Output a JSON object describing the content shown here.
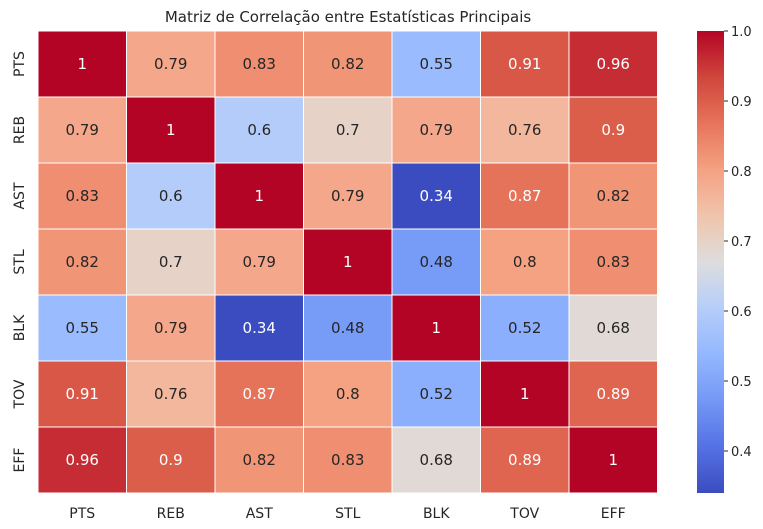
{
  "chart_data": {
    "type": "heatmap",
    "title": "Matriz de Correlação entre Estatísticas Principais",
    "x_labels": [
      "PTS",
      "REB",
      "AST",
      "STL",
      "BLK",
      "TOV",
      "EFF"
    ],
    "y_labels": [
      "PTS",
      "REB",
      "AST",
      "STL",
      "BLK",
      "TOV",
      "EFF"
    ],
    "values": [
      [
        1,
        0.79,
        0.83,
        0.82,
        0.55,
        0.91,
        0.96
      ],
      [
        0.79,
        1,
        0.6,
        0.7,
        0.79,
        0.76,
        0.9
      ],
      [
        0.83,
        0.6,
        1,
        0.79,
        0.34,
        0.87,
        0.82
      ],
      [
        0.82,
        0.7,
        0.79,
        1,
        0.48,
        0.8,
        0.83
      ],
      [
        0.55,
        0.79,
        0.34,
        0.48,
        1,
        0.52,
        0.68
      ],
      [
        0.91,
        0.76,
        0.87,
        0.8,
        0.52,
        1,
        0.89
      ],
      [
        0.96,
        0.9,
        0.82,
        0.83,
        0.68,
        0.89,
        1
      ]
    ],
    "colormap": "coolwarm",
    "vmin": 0.34,
    "vmax": 1.0,
    "colorbar_ticks": [
      "0.4",
      "0.5",
      "0.6",
      "0.7",
      "0.8",
      "0.9",
      "1.0"
    ],
    "annotations": true
  }
}
